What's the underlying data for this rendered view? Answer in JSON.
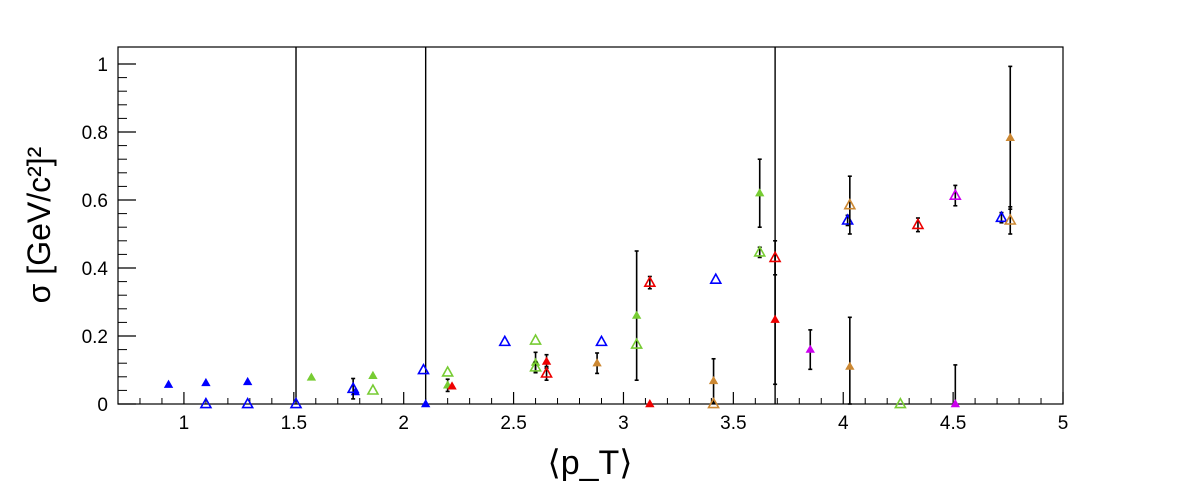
{
  "chart_data": {
    "type": "scatter",
    "xlabel": "⟨p_T⟩",
    "ylabel": "σ [GeV/c²]²",
    "xlim": [
      0.7,
      5.0
    ],
    "ylim": [
      0,
      1.05
    ],
    "x_ticks": [
      1,
      1.5,
      2,
      2.5,
      3,
      3.5,
      4,
      4.5,
      5
    ],
    "x_tick_labels": [
      "1",
      "1.5",
      "2",
      "2.5",
      "3",
      "3.5",
      "4",
      "4.5",
      "5"
    ],
    "y_ticks": [
      0,
      0.2,
      0.4,
      0.6,
      0.8,
      1
    ],
    "y_tick_labels": [
      "0",
      "0.2",
      "0.4",
      "0.6",
      "0.8",
      "1"
    ],
    "vertical_lines": [
      1.51,
      2.1,
      3.69
    ],
    "grid": false,
    "legend": "none",
    "colors": {
      "blue": "#0000ff",
      "green": "#77cc33",
      "red": "#ee0000",
      "orange": "#cc8833",
      "magenta": "#cc00ee",
      "error_bar": "#000000"
    },
    "series": [
      {
        "color": "blue",
        "marker": "filled-triangle",
        "points": [
          {
            "x": 0.93,
            "y": 0.057
          },
          {
            "x": 1.1,
            "y": 0.062
          },
          {
            "x": 1.29,
            "y": 0.065
          },
          {
            "x": 1.78,
            "y": 0.035
          },
          {
            "x": 2.1,
            "y": 0.0
          }
        ]
      },
      {
        "color": "blue",
        "marker": "open-triangle",
        "points": [
          {
            "x": 1.1,
            "y": 0.0
          },
          {
            "x": 1.29,
            "y": 0.0
          },
          {
            "x": 1.51,
            "y": 0.0
          },
          {
            "x": 1.77,
            "y": 0.045,
            "err": 0.03
          },
          {
            "x": 2.09,
            "y": 0.1
          },
          {
            "x": 2.46,
            "y": 0.183
          },
          {
            "x": 2.9,
            "y": 0.183
          },
          {
            "x": 3.42,
            "y": 0.366
          },
          {
            "x": 4.02,
            "y": 0.54,
            "err": 0.015
          },
          {
            "x": 4.72,
            "y": 0.548,
            "err": 0.015
          }
        ]
      },
      {
        "color": "green",
        "marker": "filled-triangle",
        "points": [
          {
            "x": 1.58,
            "y": 0.078
          },
          {
            "x": 1.86,
            "y": 0.083
          },
          {
            "x": 2.2,
            "y": 0.055,
            "err": 0.018
          },
          {
            "x": 2.6,
            "y": 0.122,
            "err": 0.03
          },
          {
            "x": 3.06,
            "y": 0.26,
            "err": 0.19
          },
          {
            "x": 3.62,
            "y": 0.62,
            "err": 0.1
          }
        ]
      },
      {
        "color": "green",
        "marker": "open-triangle",
        "points": [
          {
            "x": 1.86,
            "y": 0.04
          },
          {
            "x": 2.2,
            "y": 0.093
          },
          {
            "x": 2.6,
            "y": 0.187
          },
          {
            "x": 2.6,
            "y": 0.108,
            "err": 0.015
          },
          {
            "x": 3.06,
            "y": 0.175
          },
          {
            "x": 3.62,
            "y": 0.446,
            "err": 0.015
          },
          {
            "x": 4.26,
            "y": 0.0
          }
        ]
      },
      {
        "color": "red",
        "marker": "filled-triangle",
        "points": [
          {
            "x": 2.22,
            "y": 0.052
          },
          {
            "x": 2.65,
            "y": 0.125,
            "err": 0.02
          },
          {
            "x": 3.12,
            "y": 0.0
          },
          {
            "x": 3.69,
            "y": 0.248,
            "err": 0.19
          }
        ]
      },
      {
        "color": "red",
        "marker": "open-triangle",
        "points": [
          {
            "x": 2.65,
            "y": 0.09,
            "err": 0.02
          },
          {
            "x": 3.12,
            "y": 0.357,
            "err": 0.018
          },
          {
            "x": 3.69,
            "y": 0.43,
            "err": 0.05
          },
          {
            "x": 4.34,
            "y": 0.527,
            "err": 0.02
          }
        ]
      },
      {
        "color": "orange",
        "marker": "filled-triangle",
        "points": [
          {
            "x": 2.88,
            "y": 0.12,
            "err": 0.03
          },
          {
            "x": 3.41,
            "y": 0.068,
            "err": 0.065
          },
          {
            "x": 4.03,
            "y": 0.11,
            "err": 0.145
          },
          {
            "x": 4.76,
            "y": 0.783,
            "err": 0.21
          }
        ]
      },
      {
        "color": "orange",
        "marker": "open-triangle",
        "points": [
          {
            "x": 3.41,
            "y": 0.0
          },
          {
            "x": 4.03,
            "y": 0.585,
            "err": 0.085
          },
          {
            "x": 4.76,
            "y": 0.54,
            "err": 0.04
          }
        ]
      },
      {
        "color": "magenta",
        "marker": "filled-triangle",
        "points": [
          {
            "x": 3.85,
            "y": 0.16,
            "err": 0.058
          },
          {
            "x": 4.51,
            "y": 0.0,
            "err": 0.115
          }
        ]
      },
      {
        "color": "magenta",
        "marker": "open-triangle",
        "points": [
          {
            "x": 4.51,
            "y": 0.613,
            "err": 0.03
          }
        ]
      }
    ]
  }
}
